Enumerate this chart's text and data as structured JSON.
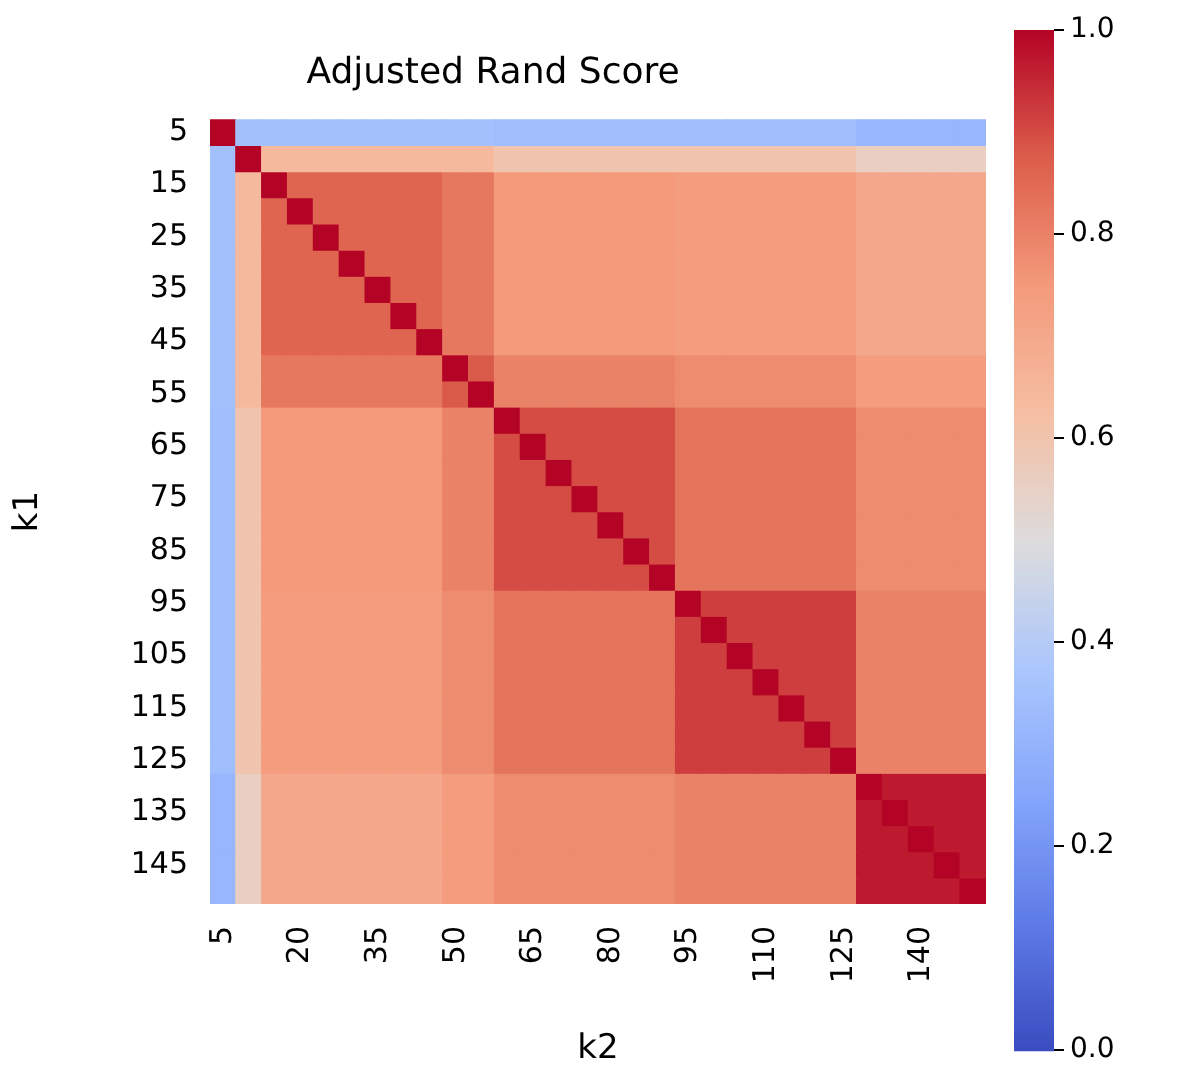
{
  "chart_data": {
    "type": "heatmap",
    "title": "Adjusted Rand Score",
    "xlabel": "k2",
    "ylabel": "k1",
    "categories": [
      "5",
      null,
      null,
      "20",
      null,
      null,
      "35",
      null,
      null,
      "50",
      null,
      null,
      "65",
      null,
      null,
      "80",
      null,
      null,
      "95",
      null,
      null,
      "110",
      null,
      null,
      "125",
      null,
      null,
      "140",
      null,
      null
    ],
    "y_categories": [
      "5",
      null,
      "15",
      null,
      "25",
      null,
      "35",
      null,
      "45",
      null,
      "55",
      null,
      "65",
      null,
      "75",
      null,
      "85",
      null,
      "95",
      null,
      "105",
      null,
      "115",
      null,
      "125",
      null,
      "135",
      null,
      "145",
      null
    ],
    "cells": [
      [
        1,
        0.35,
        0.35,
        0.35,
        0.35,
        0.35,
        0.35,
        0.35,
        0.35,
        0.35,
        0.35,
        0.34,
        0.34,
        0.34,
        0.34,
        0.34,
        0.34,
        0.34,
        0.34,
        0.34,
        0.34,
        0.34,
        0.34,
        0.34,
        0.34,
        0.31,
        0.31,
        0.31,
        0.31,
        0.31
      ],
      [
        0.35,
        1,
        0.64,
        0.64,
        0.64,
        0.64,
        0.64,
        0.64,
        0.64,
        0.64,
        0.64,
        0.6,
        0.6,
        0.6,
        0.6,
        0.6,
        0.6,
        0.6,
        0.6,
        0.6,
        0.6,
        0.6,
        0.6,
        0.6,
        0.6,
        0.56,
        0.56,
        0.56,
        0.56,
        0.56
      ],
      [
        0.35,
        0.64,
        1,
        0.86,
        0.86,
        0.86,
        0.86,
        0.86,
        0.86,
        0.82,
        0.82,
        0.75,
        0.75,
        0.75,
        0.75,
        0.75,
        0.75,
        0.75,
        0.74,
        0.74,
        0.74,
        0.74,
        0.74,
        0.74,
        0.74,
        0.7,
        0.7,
        0.7,
        0.7,
        0.7
      ],
      [
        0.35,
        0.64,
        0.86,
        1,
        0.86,
        0.86,
        0.86,
        0.86,
        0.86,
        0.82,
        0.82,
        0.75,
        0.75,
        0.75,
        0.75,
        0.75,
        0.75,
        0.75,
        0.74,
        0.74,
        0.74,
        0.74,
        0.74,
        0.74,
        0.74,
        0.7,
        0.7,
        0.7,
        0.7,
        0.7
      ],
      [
        0.35,
        0.64,
        0.86,
        0.86,
        1,
        0.86,
        0.86,
        0.86,
        0.86,
        0.82,
        0.82,
        0.75,
        0.75,
        0.75,
        0.75,
        0.75,
        0.75,
        0.75,
        0.74,
        0.74,
        0.74,
        0.74,
        0.74,
        0.74,
        0.74,
        0.7,
        0.7,
        0.7,
        0.7,
        0.7
      ],
      [
        0.35,
        0.64,
        0.86,
        0.86,
        0.86,
        1,
        0.86,
        0.86,
        0.86,
        0.82,
        0.82,
        0.75,
        0.75,
        0.75,
        0.75,
        0.75,
        0.75,
        0.75,
        0.74,
        0.74,
        0.74,
        0.74,
        0.74,
        0.74,
        0.74,
        0.7,
        0.7,
        0.7,
        0.7,
        0.7
      ],
      [
        0.35,
        0.64,
        0.86,
        0.86,
        0.86,
        0.86,
        1,
        0.86,
        0.86,
        0.82,
        0.82,
        0.75,
        0.75,
        0.75,
        0.75,
        0.75,
        0.75,
        0.75,
        0.74,
        0.74,
        0.74,
        0.74,
        0.74,
        0.74,
        0.74,
        0.7,
        0.7,
        0.7,
        0.7,
        0.7
      ],
      [
        0.35,
        0.64,
        0.86,
        0.86,
        0.86,
        0.86,
        0.86,
        1,
        0.86,
        0.82,
        0.82,
        0.75,
        0.75,
        0.75,
        0.75,
        0.75,
        0.75,
        0.75,
        0.74,
        0.74,
        0.74,
        0.74,
        0.74,
        0.74,
        0.74,
        0.7,
        0.7,
        0.7,
        0.7,
        0.7
      ],
      [
        0.35,
        0.64,
        0.86,
        0.86,
        0.86,
        0.86,
        0.86,
        0.86,
        1,
        0.82,
        0.82,
        0.75,
        0.75,
        0.75,
        0.75,
        0.75,
        0.75,
        0.75,
        0.74,
        0.74,
        0.74,
        0.74,
        0.74,
        0.74,
        0.74,
        0.7,
        0.7,
        0.7,
        0.7,
        0.7
      ],
      [
        0.35,
        0.64,
        0.82,
        0.82,
        0.82,
        0.82,
        0.82,
        0.82,
        0.82,
        1,
        0.88,
        0.8,
        0.8,
        0.8,
        0.8,
        0.8,
        0.8,
        0.8,
        0.78,
        0.78,
        0.78,
        0.78,
        0.78,
        0.78,
        0.78,
        0.74,
        0.74,
        0.74,
        0.74,
        0.74
      ],
      [
        0.35,
        0.64,
        0.82,
        0.82,
        0.82,
        0.82,
        0.82,
        0.82,
        0.82,
        0.88,
        1,
        0.8,
        0.8,
        0.8,
        0.8,
        0.8,
        0.8,
        0.8,
        0.78,
        0.78,
        0.78,
        0.78,
        0.78,
        0.78,
        0.78,
        0.74,
        0.74,
        0.74,
        0.74,
        0.74
      ],
      [
        0.34,
        0.6,
        0.75,
        0.75,
        0.75,
        0.75,
        0.75,
        0.75,
        0.75,
        0.8,
        0.8,
        1,
        0.9,
        0.9,
        0.9,
        0.9,
        0.9,
        0.9,
        0.83,
        0.83,
        0.83,
        0.83,
        0.83,
        0.83,
        0.83,
        0.78,
        0.78,
        0.78,
        0.78,
        0.78
      ],
      [
        0.34,
        0.6,
        0.75,
        0.75,
        0.75,
        0.75,
        0.75,
        0.75,
        0.75,
        0.8,
        0.8,
        0.9,
        1,
        0.9,
        0.9,
        0.9,
        0.9,
        0.9,
        0.83,
        0.83,
        0.83,
        0.83,
        0.83,
        0.83,
        0.83,
        0.78,
        0.78,
        0.78,
        0.78,
        0.78
      ],
      [
        0.34,
        0.6,
        0.75,
        0.75,
        0.75,
        0.75,
        0.75,
        0.75,
        0.75,
        0.8,
        0.8,
        0.9,
        0.9,
        1,
        0.9,
        0.9,
        0.9,
        0.9,
        0.83,
        0.83,
        0.83,
        0.83,
        0.83,
        0.83,
        0.83,
        0.78,
        0.78,
        0.78,
        0.78,
        0.78
      ],
      [
        0.34,
        0.6,
        0.75,
        0.75,
        0.75,
        0.75,
        0.75,
        0.75,
        0.75,
        0.8,
        0.8,
        0.9,
        0.9,
        0.9,
        1,
        0.9,
        0.9,
        0.9,
        0.83,
        0.83,
        0.83,
        0.83,
        0.83,
        0.83,
        0.83,
        0.78,
        0.78,
        0.78,
        0.78,
        0.78
      ],
      [
        0.34,
        0.6,
        0.75,
        0.75,
        0.75,
        0.75,
        0.75,
        0.75,
        0.75,
        0.8,
        0.8,
        0.9,
        0.9,
        0.9,
        0.9,
        1,
        0.9,
        0.9,
        0.83,
        0.83,
        0.83,
        0.83,
        0.83,
        0.83,
        0.83,
        0.78,
        0.78,
        0.78,
        0.78,
        0.78
      ],
      [
        0.34,
        0.6,
        0.75,
        0.75,
        0.75,
        0.75,
        0.75,
        0.75,
        0.75,
        0.8,
        0.8,
        0.9,
        0.9,
        0.9,
        0.9,
        0.9,
        1,
        0.9,
        0.83,
        0.83,
        0.83,
        0.83,
        0.83,
        0.83,
        0.83,
        0.78,
        0.78,
        0.78,
        0.78,
        0.78
      ],
      [
        0.34,
        0.6,
        0.75,
        0.75,
        0.75,
        0.75,
        0.75,
        0.75,
        0.75,
        0.8,
        0.8,
        0.9,
        0.9,
        0.9,
        0.9,
        0.9,
        0.9,
        1,
        0.83,
        0.83,
        0.83,
        0.83,
        0.83,
        0.83,
        0.83,
        0.78,
        0.78,
        0.78,
        0.78,
        0.78
      ],
      [
        0.34,
        0.6,
        0.74,
        0.74,
        0.74,
        0.74,
        0.74,
        0.74,
        0.74,
        0.78,
        0.78,
        0.83,
        0.83,
        0.83,
        0.83,
        0.83,
        0.83,
        0.83,
        1,
        0.92,
        0.92,
        0.92,
        0.92,
        0.92,
        0.92,
        0.8,
        0.8,
        0.8,
        0.8,
        0.8
      ],
      [
        0.34,
        0.6,
        0.74,
        0.74,
        0.74,
        0.74,
        0.74,
        0.74,
        0.74,
        0.78,
        0.78,
        0.83,
        0.83,
        0.83,
        0.83,
        0.83,
        0.83,
        0.83,
        0.92,
        1,
        0.92,
        0.92,
        0.92,
        0.92,
        0.92,
        0.8,
        0.8,
        0.8,
        0.8,
        0.8
      ],
      [
        0.34,
        0.6,
        0.74,
        0.74,
        0.74,
        0.74,
        0.74,
        0.74,
        0.74,
        0.78,
        0.78,
        0.83,
        0.83,
        0.83,
        0.83,
        0.83,
        0.83,
        0.83,
        0.92,
        0.92,
        1,
        0.92,
        0.92,
        0.92,
        0.92,
        0.8,
        0.8,
        0.8,
        0.8,
        0.8
      ],
      [
        0.34,
        0.6,
        0.74,
        0.74,
        0.74,
        0.74,
        0.74,
        0.74,
        0.74,
        0.78,
        0.78,
        0.83,
        0.83,
        0.83,
        0.83,
        0.83,
        0.83,
        0.83,
        0.92,
        0.92,
        0.92,
        1,
        0.92,
        0.92,
        0.92,
        0.8,
        0.8,
        0.8,
        0.8,
        0.8
      ],
      [
        0.34,
        0.6,
        0.74,
        0.74,
        0.74,
        0.74,
        0.74,
        0.74,
        0.74,
        0.78,
        0.78,
        0.83,
        0.83,
        0.83,
        0.83,
        0.83,
        0.83,
        0.83,
        0.92,
        0.92,
        0.92,
        0.92,
        1,
        0.92,
        0.92,
        0.8,
        0.8,
        0.8,
        0.8,
        0.8
      ],
      [
        0.34,
        0.6,
        0.74,
        0.74,
        0.74,
        0.74,
        0.74,
        0.74,
        0.74,
        0.78,
        0.78,
        0.83,
        0.83,
        0.83,
        0.83,
        0.83,
        0.83,
        0.83,
        0.92,
        0.92,
        0.92,
        0.92,
        0.92,
        1,
        0.92,
        0.8,
        0.8,
        0.8,
        0.8,
        0.8
      ],
      [
        0.34,
        0.6,
        0.74,
        0.74,
        0.74,
        0.74,
        0.74,
        0.74,
        0.74,
        0.78,
        0.78,
        0.83,
        0.83,
        0.83,
        0.83,
        0.83,
        0.83,
        0.83,
        0.92,
        0.92,
        0.92,
        0.92,
        0.92,
        0.92,
        1,
        0.8,
        0.8,
        0.8,
        0.8,
        0.8
      ],
      [
        0.31,
        0.56,
        0.7,
        0.7,
        0.7,
        0.7,
        0.7,
        0.7,
        0.7,
        0.74,
        0.74,
        0.78,
        0.78,
        0.78,
        0.78,
        0.78,
        0.78,
        0.78,
        0.8,
        0.8,
        0.8,
        0.8,
        0.8,
        0.8,
        0.8,
        1,
        0.97,
        0.97,
        0.97,
        0.97
      ],
      [
        0.31,
        0.56,
        0.7,
        0.7,
        0.7,
        0.7,
        0.7,
        0.7,
        0.7,
        0.74,
        0.74,
        0.78,
        0.78,
        0.78,
        0.78,
        0.78,
        0.78,
        0.78,
        0.8,
        0.8,
        0.8,
        0.8,
        0.8,
        0.8,
        0.8,
        0.97,
        1,
        0.97,
        0.97,
        0.97
      ],
      [
        0.31,
        0.56,
        0.7,
        0.7,
        0.7,
        0.7,
        0.7,
        0.7,
        0.7,
        0.74,
        0.74,
        0.78,
        0.78,
        0.78,
        0.78,
        0.78,
        0.78,
        0.78,
        0.8,
        0.8,
        0.8,
        0.8,
        0.8,
        0.8,
        0.8,
        0.97,
        0.97,
        1,
        0.97,
        0.97
      ],
      [
        0.31,
        0.56,
        0.7,
        0.7,
        0.7,
        0.7,
        0.7,
        0.7,
        0.7,
        0.74,
        0.74,
        0.78,
        0.78,
        0.78,
        0.78,
        0.78,
        0.78,
        0.78,
        0.8,
        0.8,
        0.8,
        0.8,
        0.8,
        0.8,
        0.8,
        0.97,
        0.97,
        0.97,
        1,
        0.97
      ],
      [
        0.31,
        0.56,
        0.7,
        0.7,
        0.7,
        0.7,
        0.7,
        0.7,
        0.7,
        0.74,
        0.74,
        0.78,
        0.78,
        0.78,
        0.78,
        0.78,
        0.78,
        0.78,
        0.8,
        0.8,
        0.8,
        0.8,
        0.8,
        0.8,
        0.8,
        0.97,
        0.97,
        0.97,
        0.97,
        1
      ]
    ],
    "clim": [
      0,
      1
    ],
    "cticks": [
      {
        "value": 0,
        "label": "0.0"
      },
      {
        "value": 0.2,
        "label": "0.2"
      },
      {
        "value": 0.4,
        "label": "0.4"
      },
      {
        "value": 0.6,
        "label": "0.6"
      },
      {
        "value": 0.8,
        "label": "0.8"
      },
      {
        "value": 1,
        "label": "1.0"
      }
    ]
  }
}
